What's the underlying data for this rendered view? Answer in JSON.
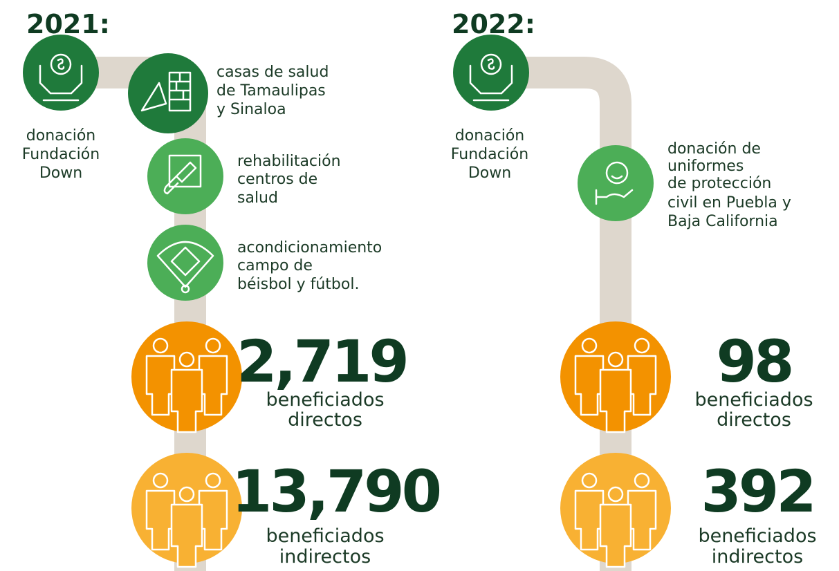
{
  "columns": [
    {
      "year": "2021:",
      "donation": [
        "donación",
        "Fundación",
        "Down"
      ],
      "items": [
        [
          "casas de salud",
          "de Tamaulipas",
          "y Sinaloa"
        ],
        [
          "rehabilitación",
          "centros de",
          "salud"
        ],
        [
          "acondicionamiento",
          "campo de",
          "béisbol y fútbol."
        ]
      ],
      "direct": {
        "number": "2,719",
        "label": [
          "beneficiados",
          "directos"
        ]
      },
      "indirect": {
        "number": "13,790",
        "label": [
          "beneficiados",
          "indirectos"
        ]
      }
    },
    {
      "year": "2022:",
      "donation": [
        "donación",
        "Fundación",
        "Down"
      ],
      "items": [
        [
          "donación de",
          "uniformes",
          "de protección",
          "civil en Puebla y",
          "Baja California"
        ]
      ],
      "direct": {
        "number": "98",
        "label": [
          "beneficiados",
          "directos"
        ]
      },
      "indirect": {
        "number": "392",
        "label": [
          "beneficiados",
          "indirectos"
        ]
      }
    }
  ]
}
